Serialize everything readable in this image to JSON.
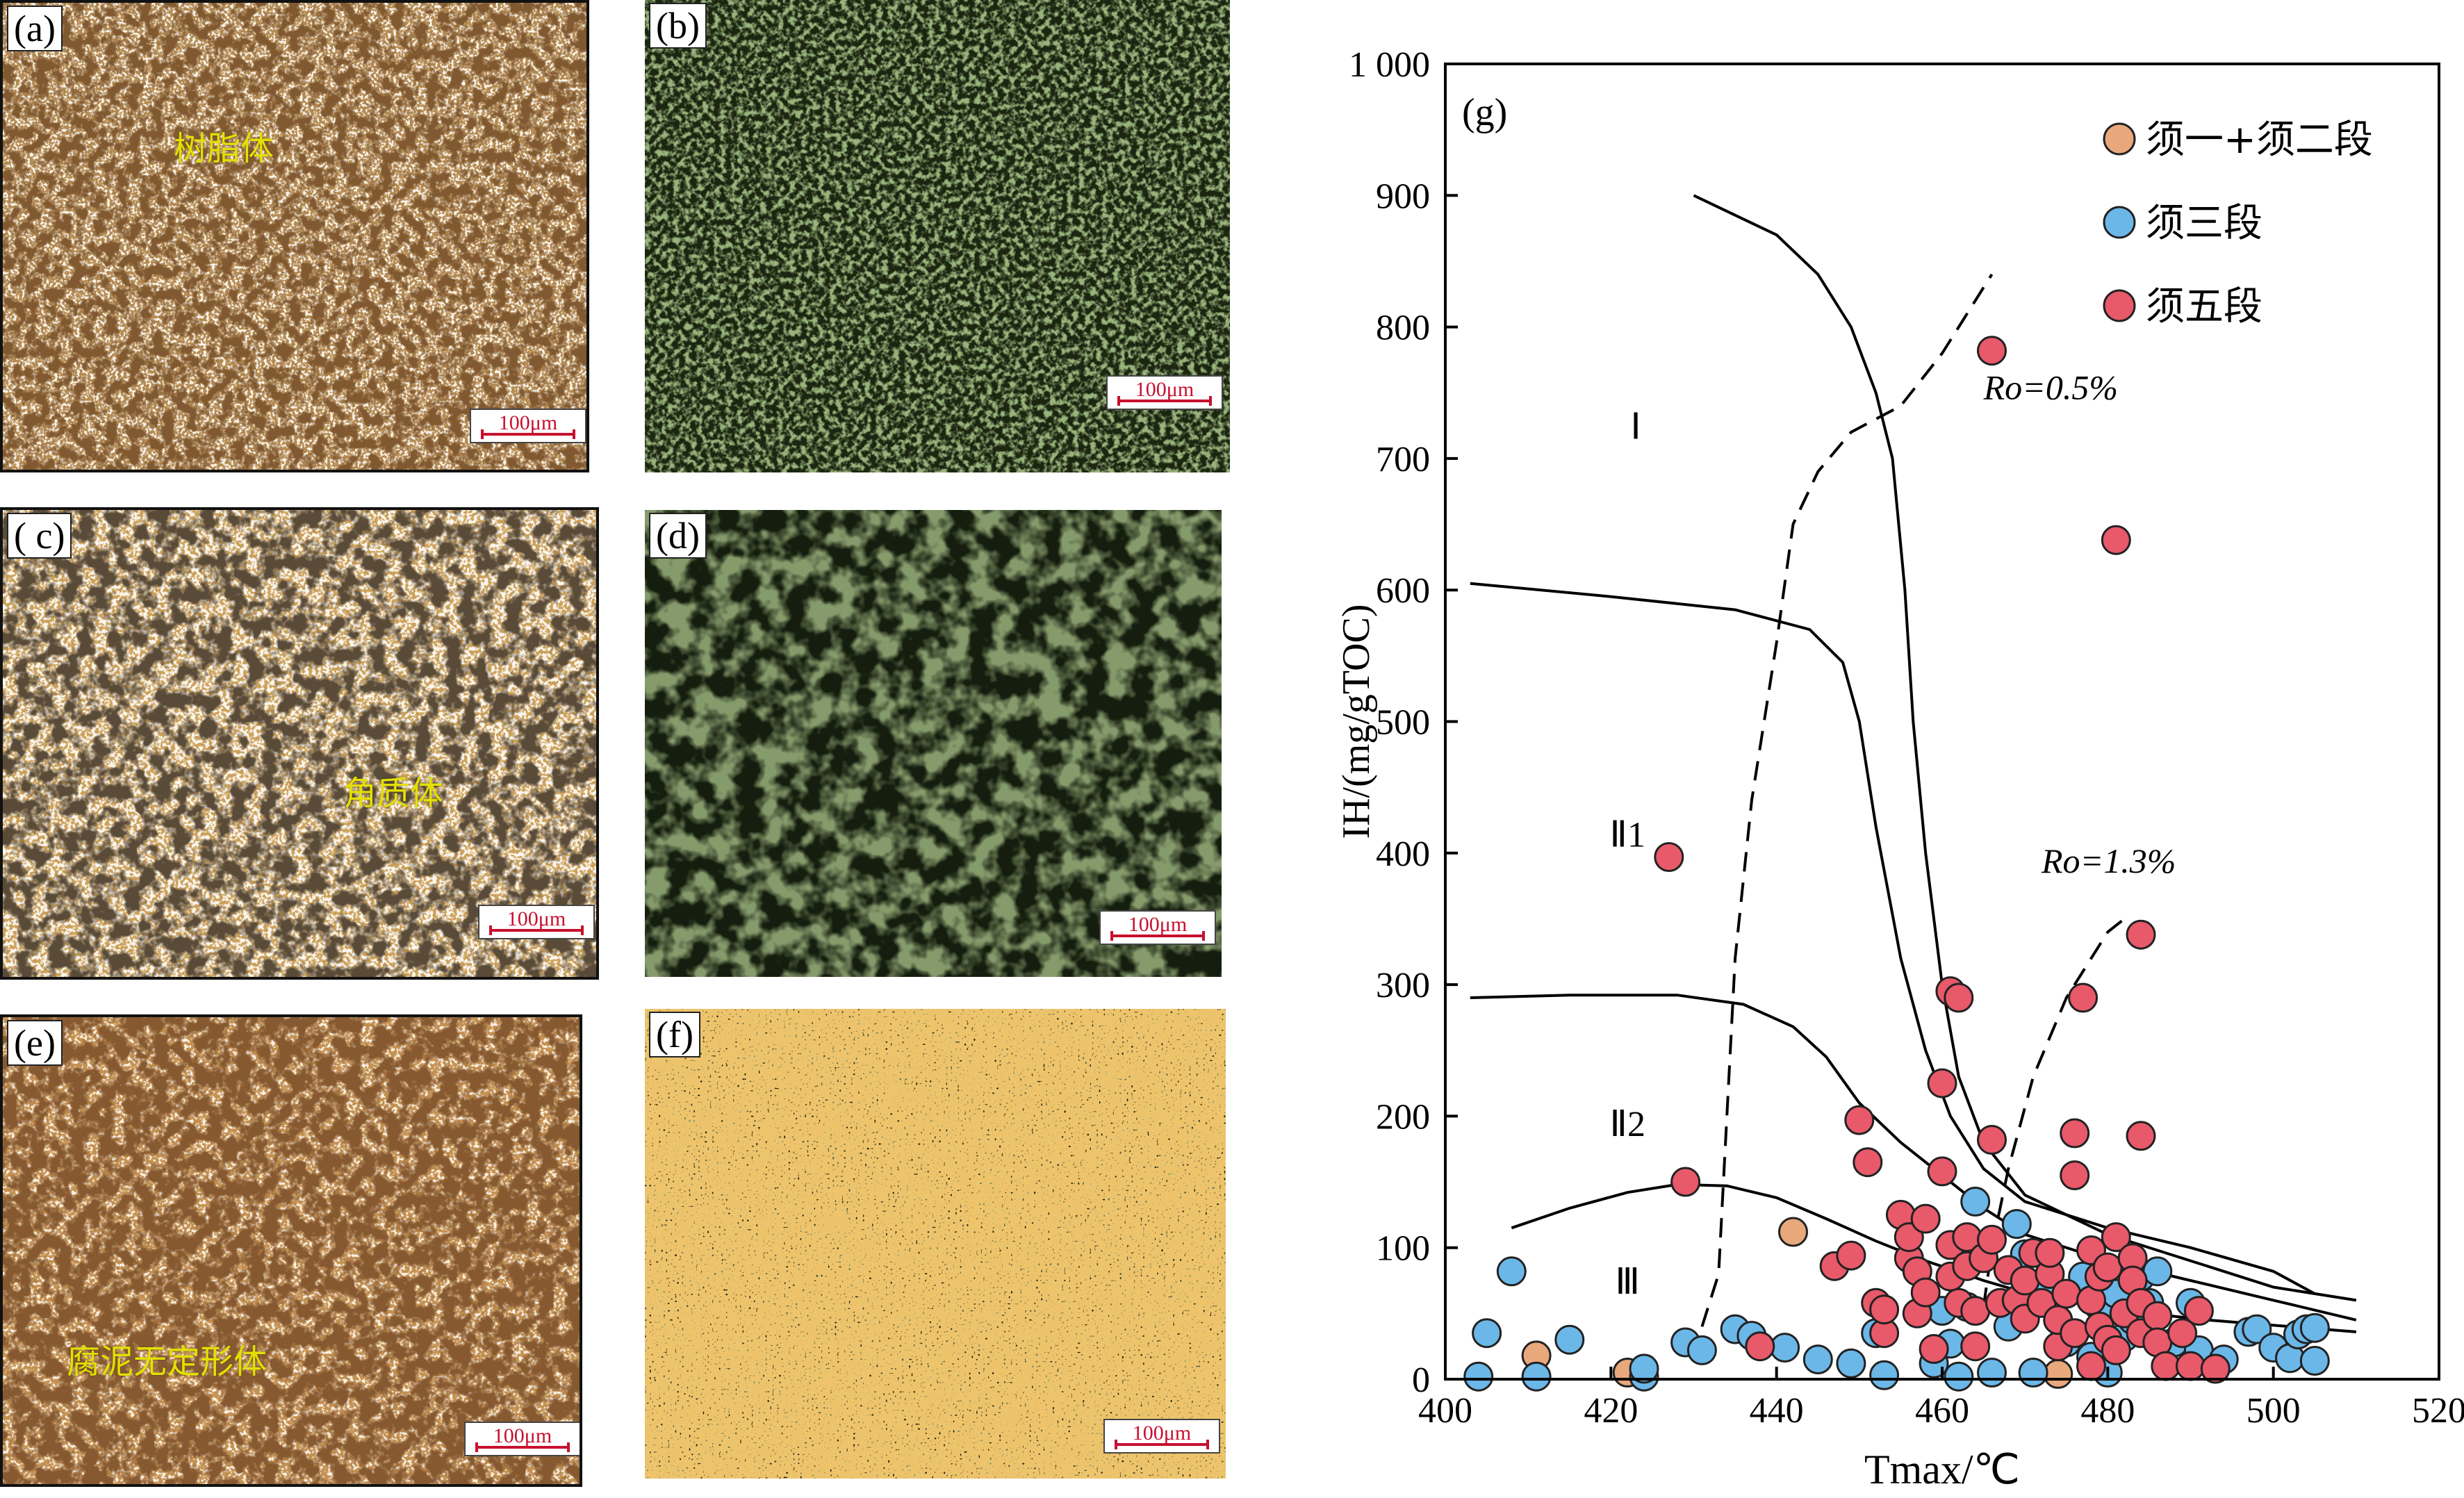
{
  "panels": {
    "a": {
      "label": "(a)",
      "annotation": "树脂体",
      "scale": "100μm"
    },
    "b": {
      "label": "(b)",
      "scale": "100μm"
    },
    "c": {
      "label": "( c)",
      "annotation": "角质体",
      "scale": "100μm"
    },
    "d": {
      "label": "(d)",
      "scale": "100μm"
    },
    "e": {
      "label": "(e)",
      "annotation": "腐泥无定形体",
      "scale": "100μm"
    },
    "f": {
      "label": "(f)",
      "scale": "100μm"
    }
  },
  "colors": {
    "series_1": "#E8A87C",
    "series_2": "#6BB7E8",
    "series_3": "#E8596A",
    "fluorescence": "#1d2a12",
    "transmitted_dark": "#2a1408"
  },
  "chart_data": {
    "type": "scatter",
    "panel_label": "(g)",
    "xlabel": "Tmax/℃",
    "ylabel": "IH/(mg/gTOC)",
    "xlim": [
      400,
      520
    ],
    "ylim": [
      0,
      1000
    ],
    "x_ticks": [
      "400",
      "420",
      "440",
      "460",
      "480",
      "500",
      "520"
    ],
    "y_ticks": [
      "0",
      "100",
      "200",
      "300",
      "400",
      "500",
      "600",
      "700",
      "800",
      "900",
      "1 000"
    ],
    "legend_position": "top-right",
    "region_labels": [
      "Ⅰ",
      "Ⅱ1",
      "Ⅱ2",
      "Ⅲ"
    ],
    "annotations": [
      "Ro=0.5%",
      "Ro=1.3%"
    ],
    "series": [
      {
        "name": "须一+须二段",
        "points": [
          [
            411,
            18
          ],
          [
            422,
            5
          ],
          [
            442,
            112
          ],
          [
            474,
            4
          ],
          [
            493,
            8
          ]
        ]
      },
      {
        "name": "须三段",
        "points": [
          [
            405,
            35
          ],
          [
            404,
            2
          ],
          [
            408,
            82
          ],
          [
            411,
            2
          ],
          [
            415,
            30
          ],
          [
            424,
            2
          ],
          [
            424,
            8
          ],
          [
            429,
            28
          ],
          [
            431,
            22
          ],
          [
            435,
            38
          ],
          [
            437,
            33
          ],
          [
            441,
            24
          ],
          [
            445,
            15
          ],
          [
            449,
            12
          ],
          [
            452,
            35
          ],
          [
            453,
            3
          ],
          [
            459,
            12
          ],
          [
            460,
            52
          ],
          [
            461,
            27
          ],
          [
            462,
            2
          ],
          [
            463,
            55
          ],
          [
            464,
            135
          ],
          [
            466,
            5
          ],
          [
            468,
            40
          ],
          [
            469,
            118
          ],
          [
            470,
            95
          ],
          [
            471,
            5
          ],
          [
            472,
            70
          ],
          [
            474,
            45
          ],
          [
            475,
            28
          ],
          [
            477,
            78
          ],
          [
            478,
            17
          ],
          [
            479,
            55
          ],
          [
            480,
            5
          ],
          [
            481,
            65
          ],
          [
            482,
            32
          ],
          [
            483,
            45
          ],
          [
            484,
            78
          ],
          [
            485,
            58
          ],
          [
            486,
            82
          ],
          [
            488,
            28
          ],
          [
            490,
            58
          ],
          [
            491,
            22
          ],
          [
            494,
            15
          ],
          [
            497,
            36
          ],
          [
            498,
            38
          ],
          [
            500,
            24
          ],
          [
            502,
            16
          ],
          [
            503,
            34
          ],
          [
            504,
            38
          ],
          [
            505,
            39
          ],
          [
            505,
            14
          ]
        ]
      },
      {
        "name": "须五段",
        "points": [
          [
            427,
            397
          ],
          [
            429,
            150
          ],
          [
            438,
            25
          ],
          [
            447,
            86
          ],
          [
            449,
            94
          ],
          [
            450,
            197
          ],
          [
            451,
            165
          ],
          [
            452,
            58
          ],
          [
            453,
            35
          ],
          [
            453,
            53
          ],
          [
            455,
            125
          ],
          [
            456,
            92
          ],
          [
            456,
            108
          ],
          [
            457,
            50
          ],
          [
            457,
            82
          ],
          [
            458,
            66
          ],
          [
            458,
            122
          ],
          [
            459,
            23
          ],
          [
            460,
            158
          ],
          [
            460,
            225
          ],
          [
            461,
            78
          ],
          [
            461,
            102
          ],
          [
            461,
            295
          ],
          [
            462,
            58
          ],
          [
            462,
            290
          ],
          [
            463,
            108
          ],
          [
            463,
            86
          ],
          [
            464,
            25
          ],
          [
            464,
            52
          ],
          [
            465,
            92
          ],
          [
            466,
            106
          ],
          [
            466,
            182
          ],
          [
            467,
            58
          ],
          [
            468,
            83
          ],
          [
            469,
            60
          ],
          [
            470,
            75
          ],
          [
            470,
            46
          ],
          [
            471,
            96
          ],
          [
            472,
            58
          ],
          [
            473,
            80
          ],
          [
            473,
            96
          ],
          [
            474,
            25
          ],
          [
            474,
            45
          ],
          [
            475,
            65
          ],
          [
            476,
            35
          ],
          [
            476,
            155
          ],
          [
            476,
            187
          ],
          [
            477,
            290
          ],
          [
            478,
            60
          ],
          [
            478,
            98
          ],
          [
            478,
            10
          ],
          [
            479,
            40
          ],
          [
            479,
            78
          ],
          [
            480,
            30
          ],
          [
            480,
            85
          ],
          [
            481,
            108
          ],
          [
            481,
            638
          ],
          [
            481,
            22
          ],
          [
            482,
            50
          ],
          [
            483,
            92
          ],
          [
            483,
            75
          ],
          [
            484,
            35
          ],
          [
            484,
            185
          ],
          [
            484,
            338
          ],
          [
            484,
            58
          ],
          [
            486,
            48
          ],
          [
            486,
            28
          ],
          [
            487,
            10
          ],
          [
            489,
            35
          ],
          [
            490,
            10
          ],
          [
            491,
            52
          ],
          [
            493,
            8
          ],
          [
            466,
            782
          ]
        ]
      }
    ]
  }
}
